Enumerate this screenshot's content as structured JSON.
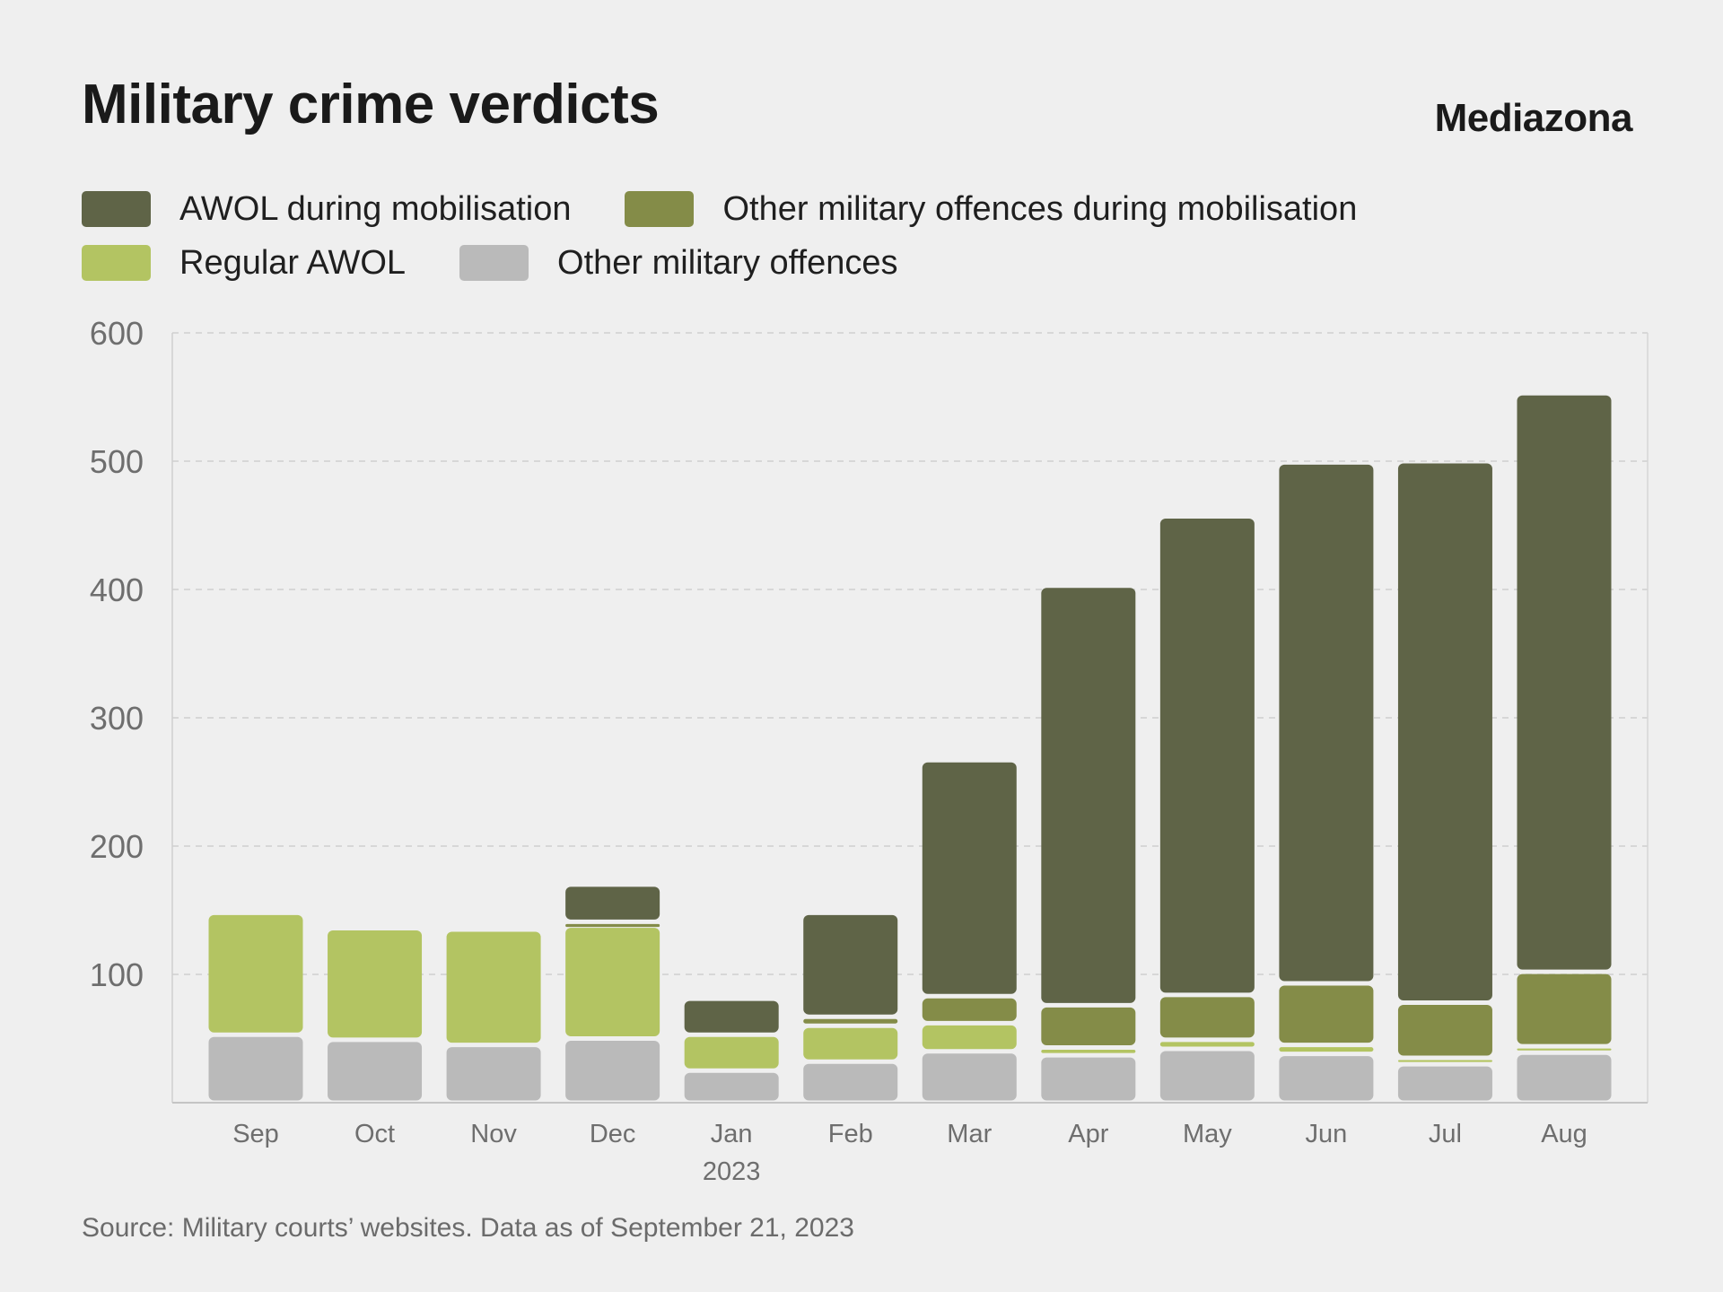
{
  "title": "Military crime verdicts",
  "brand": "Mediazona",
  "source": "Source: Military courts’ websites. Data as of September 21, 2023",
  "chart_data": {
    "type": "bar",
    "stacked": true,
    "categories": [
      "Sep",
      "Oct",
      "Nov",
      "Dec",
      "Jan",
      "Feb",
      "Mar",
      "Apr",
      "May",
      "Jun",
      "Jul",
      "Aug"
    ],
    "category_sublabels": [
      "",
      "",
      "",
      "",
      "2023",
      "",
      "",
      "",
      "",
      "",
      "",
      ""
    ],
    "series": [
      {
        "name": "Other military offences",
        "color": "#bababa",
        "values": [
          53,
          49,
          45,
          50,
          25,
          32,
          40,
          37,
          42,
          38,
          30,
          39
        ]
      },
      {
        "name": "Regular AWOL",
        "color": "#b3c462",
        "values": [
          95,
          87,
          90,
          88,
          28,
          28,
          22,
          6,
          7,
          7,
          5,
          5
        ]
      },
      {
        "name": "Other military offences during mobilisation",
        "color": "#848c48",
        "values": [
          0,
          0,
          0,
          3,
          0,
          7,
          21,
          33,
          35,
          48,
          43,
          58
        ]
      },
      {
        "name": "AWOL during mobilisation",
        "color": "#5f6447",
        "values": [
          0,
          0,
          0,
          29,
          28,
          81,
          184,
          327,
          373,
          406,
          422,
          451
        ]
      }
    ],
    "legend_order": [
      3,
      2,
      1,
      0
    ],
    "yticks": [
      100,
      200,
      300,
      400,
      500,
      600
    ],
    "ylim": [
      0,
      600
    ],
    "grid": true,
    "legend_position": "top-left"
  }
}
